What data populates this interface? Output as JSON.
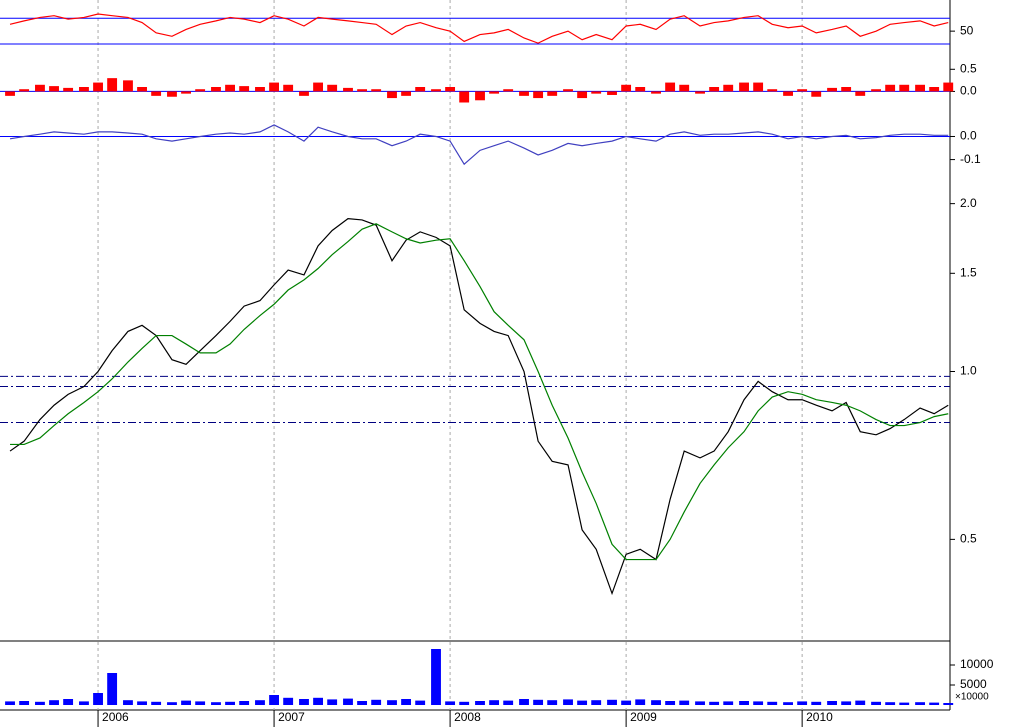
{
  "chart_data": {
    "type": "stock",
    "x": [
      2005.5,
      2005.58,
      2005.67,
      2005.75,
      2005.83,
      2005.92,
      2006.0,
      2006.08,
      2006.17,
      2006.25,
      2006.33,
      2006.42,
      2006.5,
      2006.58,
      2006.67,
      2006.75,
      2006.83,
      2006.92,
      2007.0,
      2007.08,
      2007.17,
      2007.25,
      2007.33,
      2007.42,
      2007.5,
      2007.58,
      2007.67,
      2007.75,
      2007.83,
      2007.92,
      2008.0,
      2008.08,
      2008.17,
      2008.25,
      2008.33,
      2008.42,
      2008.5,
      2008.58,
      2008.67,
      2008.75,
      2008.83,
      2008.92,
      2009.0,
      2009.08,
      2009.17,
      2009.25,
      2009.33,
      2009.42,
      2009.5,
      2009.58,
      2009.67,
      2009.75,
      2009.83,
      2009.92,
      2010.0,
      2010.08,
      2010.17,
      2010.25,
      2010.33,
      2010.42,
      2010.5,
      2010.58,
      2010.67,
      2010.75,
      2010.83
    ],
    "xlim": [
      2005.443,
      2010.84
    ],
    "xticks": [
      2006,
      2007,
      2008,
      2009,
      2010
    ],
    "grid": true,
    "panels": [
      {
        "type": "line",
        "ylim": [
          21,
          84
        ],
        "yticks": [
          50
        ],
        "levels": [
          65,
          35
        ],
        "level_color": "#0000ff",
        "series": [
          {
            "color": "#ff0000",
            "values": [
              58,
              62,
              66,
              68,
              64,
              66,
              70,
              68,
              66,
              60,
              48,
              44,
              52,
              58,
              62,
              66,
              64,
              60,
              68,
              64,
              56,
              66,
              64,
              62,
              60,
              58,
              46,
              56,
              60,
              54,
              50,
              38,
              46,
              48,
              52,
              42,
              36,
              44,
              50,
              40,
              46,
              40,
              56,
              58,
              52,
              64,
              68,
              56,
              60,
              62,
              66,
              68,
              58,
              54,
              56,
              48,
              52,
              56,
              44,
              50,
              58,
              60,
              62,
              56,
              60
            ]
          }
        ]
      },
      {
        "type": "bar",
        "ylim": [
          -0.6,
          0.8
        ],
        "yticks": [
          {
            "value": 0,
            "label": "0.0"
          },
          0.5
        ],
        "levels": [
          0
        ],
        "level_color": "#0000ff",
        "series": [
          {
            "color": "#ff0000",
            "values": [
              -0.1,
              0.05,
              0.15,
              0.12,
              0.08,
              0.1,
              0.2,
              0.3,
              0.25,
              0.1,
              -0.1,
              -0.12,
              -0.05,
              0.05,
              0.1,
              0.15,
              0.12,
              0.1,
              0.2,
              0.15,
              -0.1,
              0.2,
              0.15,
              0.08,
              0.05,
              0.05,
              -0.15,
              -0.1,
              0.1,
              0.05,
              0.1,
              -0.25,
              -0.2,
              -0.05,
              0.05,
              -0.1,
              -0.15,
              -0.1,
              0.05,
              -0.15,
              -0.05,
              -0.08,
              0.15,
              0.1,
              -0.05,
              0.2,
              0.15,
              -0.05,
              0.1,
              0.15,
              0.2,
              0.2,
              0.05,
              -0.1,
              0.05,
              -0.12,
              0.08,
              0.1,
              -0.1,
              0.05,
              0.15,
              0.15,
              0.15,
              0.1,
              0.2
            ]
          }
        ]
      },
      {
        "type": "line",
        "ylim": [
          -0.21,
          0.08
        ],
        "yticks": [
          {
            "value": 0,
            "label": "0.0"
          },
          -0.1
        ],
        "levels": [
          0
        ],
        "level_color": "#0000ff",
        "series": [
          {
            "color": "#4040c0",
            "values": [
              -0.01,
              0,
              0.01,
              0.02,
              0.015,
              0.01,
              0.02,
              0.02,
              0.015,
              0.01,
              -0.01,
              -0.02,
              -0.01,
              0,
              0.01,
              0.015,
              0.01,
              0.02,
              0.05,
              0.02,
              -0.02,
              0.04,
              0.02,
              0,
              -0.01,
              -0.01,
              -0.04,
              -0.02,
              0.01,
              0,
              -0.02,
              -0.12,
              -0.06,
              -0.04,
              -0.02,
              -0.05,
              -0.08,
              -0.06,
              -0.03,
              -0.04,
              -0.03,
              -0.02,
              0,
              -0.01,
              -0.02,
              0.01,
              0.02,
              0.005,
              0.01,
              0.01,
              0.015,
              0.02,
              0.01,
              -0.01,
              0,
              -0.01,
              0,
              0.005,
              -0.01,
              -0.005,
              0.005,
              0.01,
              0.01,
              0.005,
              0.005
            ]
          }
        ]
      },
      {
        "type": "line",
        "log": true,
        "ylim": [
          0.33,
          2.16
        ],
        "yticks": [
          {
            "value": 0.5,
            "label": "0.5"
          },
          {
            "value": 1,
            "label": "1.0"
          },
          {
            "value": 1.5,
            "label": "1.5"
          },
          {
            "value": 2,
            "label": "2.0"
          }
        ],
        "levels": [
          0.98,
          0.94,
          0.81
        ],
        "level_color": "#000080",
        "series": [
          {
            "color": "#000000",
            "values": [
              0.72,
              0.75,
              0.82,
              0.87,
              0.91,
              0.94,
              1.0,
              1.09,
              1.18,
              1.21,
              1.16,
              1.05,
              1.03,
              1.09,
              1.16,
              1.23,
              1.31,
              1.34,
              1.43,
              1.52,
              1.49,
              1.68,
              1.79,
              1.88,
              1.87,
              1.83,
              1.58,
              1.72,
              1.78,
              1.74,
              1.68,
              1.29,
              1.22,
              1.18,
              1.16,
              1.0,
              0.75,
              0.69,
              0.68,
              0.52,
              0.48,
              0.4,
              0.47,
              0.48,
              0.46,
              0.59,
              0.72,
              0.7,
              0.72,
              0.78,
              0.89,
              0.96,
              0.92,
              0.89,
              0.89,
              0.87,
              0.85,
              0.88,
              0.78,
              0.77,
              0.79,
              0.82,
              0.86,
              0.84,
              0.87
            ]
          },
          {
            "color": "#008000",
            "values": [
              0.74,
              0.74,
              0.76,
              0.8,
              0.84,
              0.88,
              0.92,
              0.97,
              1.04,
              1.1,
              1.16,
              1.16,
              1.12,
              1.08,
              1.08,
              1.12,
              1.19,
              1.26,
              1.32,
              1.4,
              1.46,
              1.53,
              1.62,
              1.71,
              1.8,
              1.84,
              1.78,
              1.73,
              1.7,
              1.72,
              1.73,
              1.58,
              1.42,
              1.28,
              1.21,
              1.14,
              1.0,
              0.87,
              0.76,
              0.66,
              0.58,
              0.49,
              0.46,
              0.46,
              0.46,
              0.5,
              0.56,
              0.63,
              0.68,
              0.73,
              0.78,
              0.85,
              0.9,
              0.92,
              0.91,
              0.89,
              0.88,
              0.87,
              0.85,
              0.82,
              0.8,
              0.8,
              0.81,
              0.83,
              0.84
            ]
          }
        ]
      },
      {
        "type": "bar",
        "ylim": [
          0,
          16000
        ],
        "yticks": [
          5000,
          10000
        ],
        "unit_label": "×10000",
        "series": [
          {
            "color": "#0000ff",
            "values": [
              900,
              1000,
              800,
              1200,
              1500,
              900,
              3000,
              8000,
              1200,
              900,
              800,
              700,
              1100,
              900,
              700,
              800,
              1000,
              1200,
              2500,
              1800,
              1500,
              1800,
              1400,
              1600,
              1000,
              1300,
              1200,
              1500,
              1100,
              14000,
              900,
              800,
              1000,
              1200,
              1100,
              1500,
              1300,
              1200,
              1400,
              1100,
              1200,
              1300,
              1100,
              1400,
              1200,
              1000,
              1100,
              900,
              800,
              900,
              1000,
              900,
              800,
              700,
              900,
              800,
              1000,
              900,
              1100,
              800,
              700,
              600,
              700,
              600,
              500
            ]
          }
        ]
      }
    ]
  }
}
